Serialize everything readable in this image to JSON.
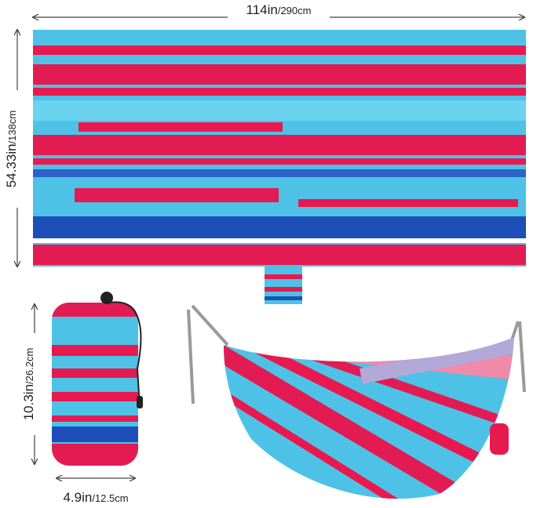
{
  "dimensions": [
    {
      "main": "114in",
      "alt": "/290cm"
    },
    {
      "main": "54.33in",
      "alt": "/138cm"
    },
    {
      "main": "10.3in",
      "alt": "/26.2cm"
    },
    {
      "main": "4.9in",
      "alt": "/12.5cm"
    }
  ]
}
